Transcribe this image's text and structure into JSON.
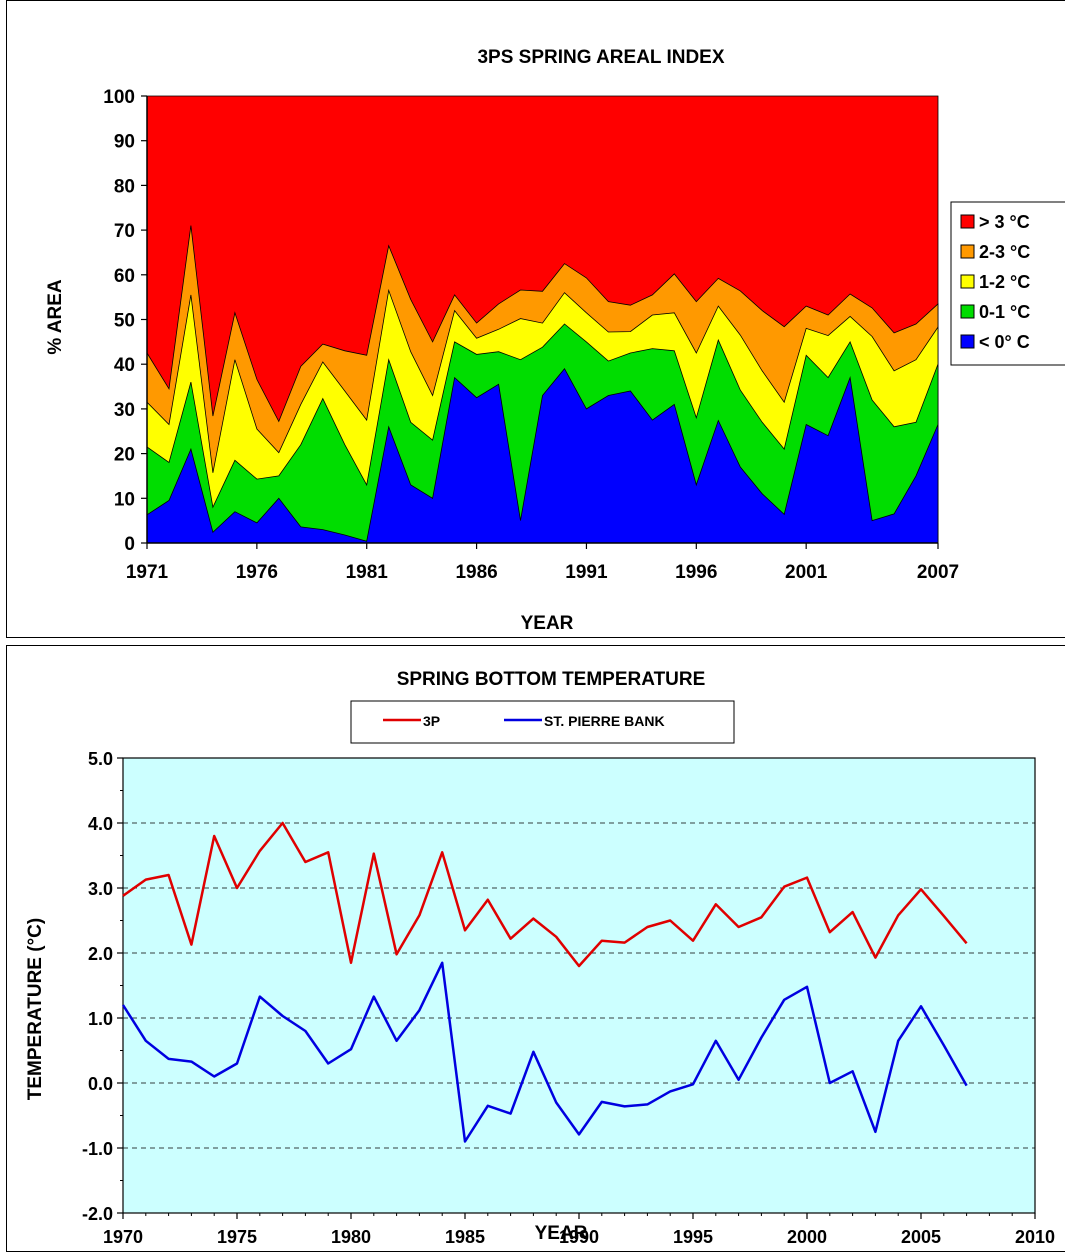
{
  "charts": [
    {
      "id": "areal",
      "type": "area",
      "title": "3PS SPRING AREAL INDEX",
      "xlabel": "YEAR",
      "ylabel": "% AREA",
      "ylim": [
        0,
        100
      ],
      "yticks": [
        "0",
        "10",
        "20",
        "30",
        "40",
        "50",
        "60",
        "70",
        "80",
        "90",
        "100"
      ],
      "xticks": [
        "1971",
        "1976",
        "1981",
        "1986",
        "1991",
        "1996",
        "2001",
        "2007"
      ],
      "legend_position": "right",
      "colors": {
        "gt3": "#ff0000",
        "c23": "#ff9900",
        "c12": "#ffff00",
        "c01": "#00dd00",
        "lt0": "#0000ff"
      }
    },
    {
      "id": "temp",
      "type": "line",
      "title": "SPRING BOTTOM TEMPERATURE",
      "xlabel": "YEAR",
      "ylabel": "TEMPERATURE (°C)",
      "ylim": [
        -2.0,
        5.0
      ],
      "xlim": [
        1970,
        2010
      ],
      "yticks": [
        "-2.0",
        "-1.0",
        "0.0",
        "1.0",
        "2.0",
        "3.0",
        "4.0",
        "5.0"
      ],
      "xticks": [
        "1970",
        "1975",
        "1980",
        "1985",
        "1990",
        "1995",
        "2000",
        "2005",
        "2010"
      ],
      "legend_position": "top",
      "plot_background": "#ccffff",
      "grid": "dashed horizontal"
    }
  ],
  "chart_data": [
    {
      "type": "area",
      "stacked": true,
      "x": [
        1971,
        1972,
        1973,
        1974,
        1975,
        1976,
        1977,
        1978,
        1979,
        1980,
        1981,
        1982,
        1983,
        1984,
        1985,
        1986,
        1987,
        1988,
        1989,
        1990,
        1991,
        1992,
        1993,
        1994,
        1995,
        1996,
        1997,
        1998,
        1999,
        2000,
        2001,
        2002,
        2003,
        2004,
        2005,
        2006,
        2007
      ],
      "series": [
        {
          "name": "< 0° C",
          "key": "lt0",
          "values": [
            6.3,
            9.5,
            21,
            2.4,
            7,
            4.5,
            10,
            3.6,
            3,
            1.8,
            0.4,
            26,
            13,
            10,
            37,
            32.5,
            35.5,
            5,
            33,
            39,
            30,
            33,
            34,
            27.5,
            31,
            13,
            27.4,
            17,
            11,
            6.4,
            26.5,
            24,
            37,
            5,
            6.5,
            15,
            26.5
          ]
        },
        {
          "name": "0-1 °C",
          "key": "c01",
          "values": [
            21.5,
            18,
            36,
            8,
            18.5,
            14.3,
            15,
            22,
            32.3,
            22,
            13,
            41,
            27,
            23,
            45,
            42.2,
            42.8,
            41,
            43.8,
            49,
            45,
            40.7,
            42.5,
            43.5,
            43,
            28,
            45.4,
            34.2,
            27,
            21,
            42,
            37,
            45,
            32,
            26,
            27,
            40
          ]
        },
        {
          "name": "1-2 °C",
          "key": "c12",
          "values": [
            31.5,
            26.5,
            55.5,
            15.7,
            41,
            25.5,
            20.2,
            31,
            40.5,
            34,
            27.5,
            56.5,
            42.8,
            33,
            52,
            45.8,
            47.8,
            50.2,
            49.2,
            56,
            51.5,
            47.2,
            47.3,
            51,
            51.5,
            42.5,
            53,
            46.5,
            38.5,
            31.5,
            48,
            46.4,
            50.7,
            46.2,
            38.5,
            41,
            48.3
          ]
        },
        {
          "name": "2-3 °C",
          "key": "c23",
          "values": [
            42.5,
            34.5,
            71,
            28.4,
            51.5,
            36.6,
            27.2,
            39.5,
            44.5,
            43,
            42,
            66.5,
            54.5,
            45,
            55.5,
            49.2,
            53.5,
            56.6,
            56.3,
            62.5,
            59.3,
            54,
            53.2,
            55.5,
            60.2,
            54,
            59.2,
            56.4,
            52,
            48.4,
            53,
            51,
            55.7,
            52.6,
            47,
            49,
            53.5
          ]
        },
        {
          "name": "> 3 °C",
          "key": "gt3",
          "values": [
            100,
            100,
            100,
            100,
            100,
            100,
            100,
            100,
            100,
            100,
            100,
            100,
            100,
            100,
            100,
            100,
            100,
            100,
            100,
            100,
            100,
            100,
            100,
            100,
            100,
            100,
            100,
            100,
            100,
            100,
            100,
            100,
            100,
            100,
            100,
            100,
            100
          ]
        }
      ]
    },
    {
      "type": "line",
      "x": [
        1970,
        1971,
        1972,
        1973,
        1974,
        1975,
        1976,
        1977,
        1978,
        1979,
        1980,
        1981,
        1982,
        1983,
        1984,
        1985,
        1986,
        1987,
        1988,
        1989,
        1990,
        1991,
        1992,
        1993,
        1994,
        1995,
        1996,
        1997,
        1998,
        1999,
        2000,
        2001,
        2002,
        2003,
        2004,
        2005,
        2006,
        2007
      ],
      "series": [
        {
          "name": "3P",
          "color": "#e00000",
          "values": [
            2.88,
            3.13,
            3.2,
            2.13,
            3.8,
            3.0,
            3.57,
            4.0,
            3.4,
            3.55,
            1.85,
            3.53,
            1.98,
            2.58,
            3.55,
            2.35,
            2.82,
            2.22,
            2.53,
            2.25,
            1.8,
            2.19,
            2.16,
            2.4,
            2.5,
            2.19,
            2.75,
            2.4,
            2.55,
            3.02,
            3.16,
            2.32,
            2.63,
            1.93,
            2.58,
            2.98,
            2.57,
            2.15
          ]
        },
        {
          "name": "ST. PIERRE BANK",
          "color": "#0000e0",
          "values": [
            1.2,
            0.65,
            0.37,
            0.33,
            0.1,
            0.3,
            1.33,
            1.03,
            0.8,
            0.3,
            0.52,
            1.33,
            0.65,
            1.12,
            1.85,
            -0.9,
            -0.35,
            -0.47,
            0.48,
            -0.3,
            -0.79,
            -0.29,
            -0.36,
            -0.33,
            -0.13,
            -0.02,
            0.65,
            0.05,
            0.7,
            1.28,
            1.48,
            0.0,
            0.18,
            -0.75,
            0.65,
            1.18,
            0.58,
            -0.04
          ]
        }
      ]
    }
  ]
}
